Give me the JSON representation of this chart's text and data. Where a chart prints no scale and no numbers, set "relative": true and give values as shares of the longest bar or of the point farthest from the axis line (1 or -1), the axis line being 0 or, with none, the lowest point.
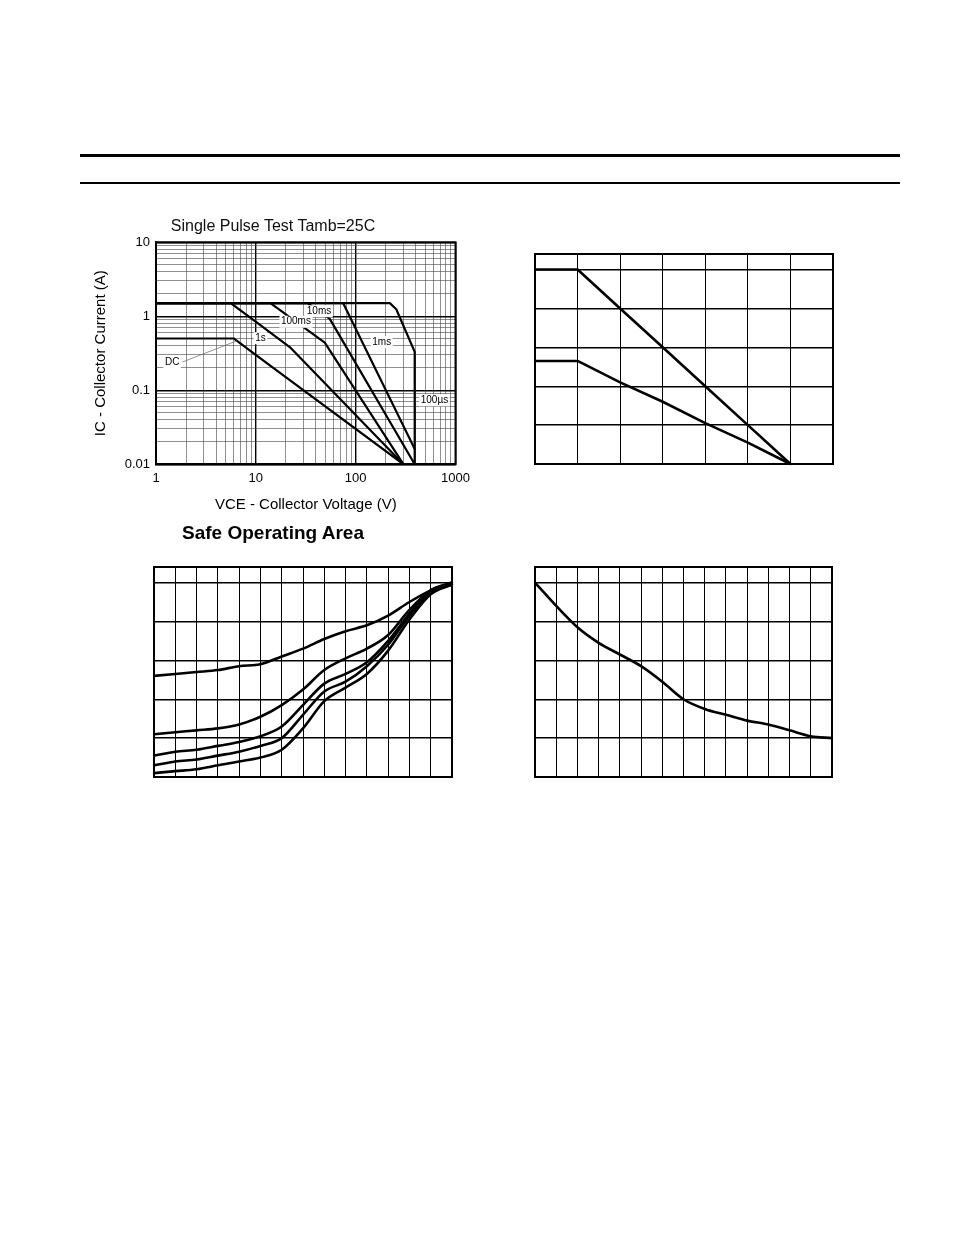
{
  "chart_data": [
    {
      "type": "line",
      "title": "Safe Operating Area",
      "subtitle": "Single Pulse Test Tamb=25C",
      "xlabel": "VCE - Collector Voltage (V)",
      "ylabel": "IC - Collector Current (A)",
      "log": "xy",
      "xlim": [
        1,
        1000
      ],
      "ylim": [
        0.01,
        10
      ],
      "xticks": [
        1,
        {
          "value": 2,
          "label": null
        },
        {
          "value": 3,
          "label": null
        },
        {
          "value": 4,
          "label": null
        },
        {
          "value": 5,
          "label": null
        },
        {
          "value": 6,
          "label": null
        },
        {
          "value": 7,
          "label": null
        },
        {
          "value": 8,
          "label": null
        },
        {
          "value": 9,
          "label": null
        },
        10,
        {
          "value": 20,
          "label": null
        },
        {
          "value": 30,
          "label": null
        },
        {
          "value": 40,
          "label": null
        },
        {
          "value": 50,
          "label": null
        },
        {
          "value": 60,
          "label": null
        },
        {
          "value": 70,
          "label": null
        },
        {
          "value": 80,
          "label": null
        },
        {
          "value": 90,
          "label": null
        },
        100,
        {
          "value": 200,
          "label": null
        },
        {
          "value": 300,
          "label": null
        },
        {
          "value": 400,
          "label": null
        },
        {
          "value": 500,
          "label": null
        },
        {
          "value": 600,
          "label": null
        },
        {
          "value": 700,
          "label": null
        },
        {
          "value": 800,
          "label": null
        },
        {
          "value": 900,
          "label": null
        },
        1000
      ],
      "yticks": [
        0.01,
        {
          "value": 0.02,
          "label": null
        },
        {
          "value": 0.03,
          "label": null
        },
        {
          "value": 0.04,
          "label": null
        },
        {
          "value": 0.05,
          "label": null
        },
        {
          "value": 0.06,
          "label": null
        },
        {
          "value": 0.07,
          "label": null
        },
        {
          "value": 0.08,
          "label": null
        },
        {
          "value": 0.09,
          "label": null
        },
        0.1,
        {
          "value": 0.2,
          "label": null
        },
        {
          "value": 0.3,
          "label": null
        },
        {
          "value": 0.4,
          "label": null
        },
        {
          "value": 0.5,
          "label": null
        },
        {
          "value": 0.6,
          "label": null
        },
        {
          "value": 0.7,
          "label": null
        },
        {
          "value": 0.8,
          "label": null
        },
        {
          "value": 0.9,
          "label": null
        },
        1,
        {
          "value": 2,
          "label": null
        },
        {
          "value": 3,
          "label": null
        },
        {
          "value": 4,
          "label": null
        },
        {
          "value": 5,
          "label": null
        },
        {
          "value": 6,
          "label": null
        },
        {
          "value": 7,
          "label": null
        },
        {
          "value": 8,
          "label": null
        },
        {
          "value": 9,
          "label": null
        },
        10
      ],
      "grid": true,
      "series": [
        {
          "name": "DC",
          "color": "#000000",
          "x": [
            1,
            6,
            300
          ],
          "values": [
            0.5,
            0.5,
            0.01
          ]
        },
        {
          "name": "1s",
          "color": "#000000",
          "x": [
            1,
            5.6,
            22,
            300
          ],
          "values": [
            1.5,
            1.5,
            0.38,
            0.01
          ]
        },
        {
          "name": "100ms",
          "color": "#000000",
          "x": [
            1,
            14,
            49,
            300
          ],
          "values": [
            1.5,
            1.5,
            0.44,
            0.01
          ]
        },
        {
          "name": "10ms",
          "color": "#000000",
          "x": [
            1,
            33,
            55,
            390
          ],
          "values": [
            1.5,
            1.5,
            0.92,
            0.01
          ]
        },
        {
          "name": "1ms",
          "color": "#000000",
          "x": [
            1,
            75,
            390
          ],
          "values": [
            1.5,
            1.5,
            0.016
          ]
        },
        {
          "name": "100µs",
          "color": "#000000",
          "x": [
            1,
            220,
            255,
            390,
            390
          ],
          "values": [
            1.5,
            1.5,
            1.24,
            0.33,
            0.01
          ]
        }
      ]
    },
    {
      "type": "line",
      "relative": true,
      "tick_labels": false,
      "grid": true,
      "categories": [
        null,
        null,
        null,
        null,
        null,
        null,
        null,
        null
      ],
      "series": [
        {
          "color": "#000000",
          "values": [
            1,
            1,
            0.8,
            0.6,
            0.4,
            0.2,
            0,
            null
          ]
        },
        {
          "color": "#000000",
          "values": [
            0.53,
            0.53,
            0.42,
            0.32,
            0.21,
            0.11,
            0,
            null
          ]
        }
      ]
    },
    {
      "type": "line",
      "relative": true,
      "tick_labels": false,
      "grid": true,
      "categories": [
        null,
        null,
        null,
        null,
        null,
        null,
        null,
        null,
        null,
        null,
        null,
        null,
        null,
        null,
        null
      ],
      "series": [
        {
          "color": "#000000",
          "values": [
            0.52,
            0.53,
            0.54,
            0.55,
            0.57,
            0.58,
            0.62,
            0.66,
            0.71,
            0.75,
            0.78,
            0.83,
            0.9,
            0.96,
            1
          ]
        },
        {
          "color": "#000000",
          "values": [
            0.22,
            0.23,
            0.24,
            0.25,
            0.27,
            0.31,
            0.37,
            0.45,
            0.55,
            0.61,
            0.66,
            0.73,
            0.86,
            0.96,
            1
          ]
        },
        {
          "color": "#000000",
          "values": [
            0.11,
            0.13,
            0.14,
            0.16,
            0.18,
            0.21,
            0.26,
            0.37,
            0.48,
            0.53,
            0.59,
            0.7,
            0.84,
            0.96,
            0.99
          ]
        },
        {
          "color": "#000000",
          "values": [
            0.06,
            0.08,
            0.09,
            0.11,
            0.13,
            0.16,
            0.2,
            0.32,
            0.44,
            0.49,
            0.57,
            0.68,
            0.83,
            0.95,
            0.99
          ]
        },
        {
          "color": "#000000",
          "values": [
            0.02,
            0.03,
            0.04,
            0.06,
            0.08,
            0.1,
            0.14,
            0.25,
            0.39,
            0.46,
            0.53,
            0.65,
            0.81,
            0.94,
            0.99
          ]
        }
      ]
    },
    {
      "type": "line",
      "relative": true,
      "tick_labels": false,
      "grid": true,
      "categories": [
        null,
        null,
        null,
        null,
        null,
        null,
        null,
        null,
        null,
        null,
        null,
        null,
        null,
        null,
        null
      ],
      "series": [
        {
          "color": "#000000",
          "values": [
            1,
            0.88,
            0.77,
            0.69,
            0.63,
            0.57,
            0.49,
            0.4,
            0.35,
            0.32,
            0.29,
            0.27,
            0.24,
            0.21,
            0.2
          ]
        }
      ]
    }
  ]
}
